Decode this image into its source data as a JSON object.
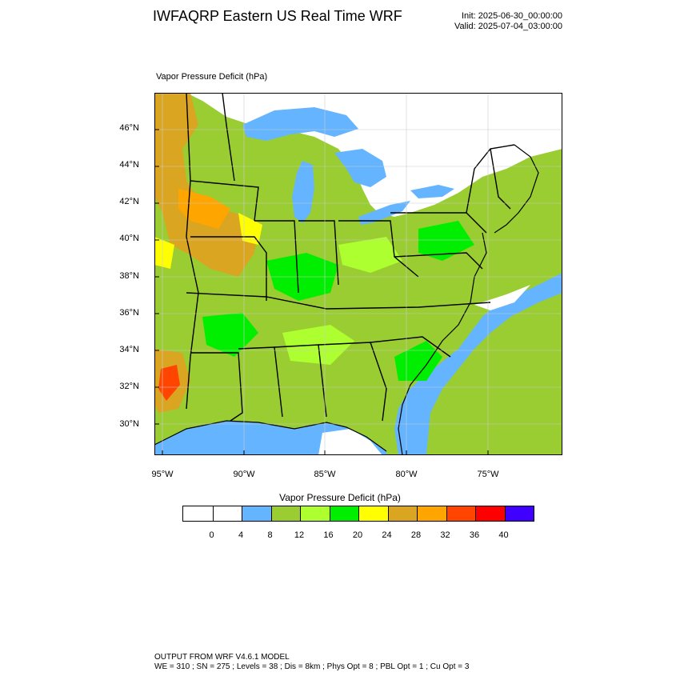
{
  "title": "IWFAQRP Eastern US Real Time WRF",
  "init": "Init: 2025-06-30_00:00:00",
  "valid": "Valid: 2025-07-04_03:00:00",
  "map_label": "Vapor Pressure Deficit   (hPa)",
  "lat_labels": [
    "46°N",
    "44°N",
    "42°N",
    "40°N",
    "38°N",
    "36°N",
    "34°N",
    "32°N",
    "30°N"
  ],
  "lon_labels": [
    "95°W",
    "90°W",
    "85°W",
    "80°W",
    "75°W"
  ],
  "colorbar": {
    "title": "Vapor Pressure Deficit   (hPa)",
    "labels": [
      "0",
      "4",
      "8",
      "12",
      "16",
      "20",
      "24",
      "28",
      "32",
      "36",
      "40"
    ],
    "colors": [
      "#ffffff",
      "#ffffff",
      "#64b4ff",
      "#9acd32",
      "#adff2f",
      "#00ee00",
      "#ffff00",
      "#daa520",
      "#ffa500",
      "#ff4500",
      "#ff0000",
      "#4000ff"
    ]
  },
  "footer": {
    "line1": "OUTPUT FROM WRF V4.6.1 MODEL",
    "line2": "WE = 310 ; SN = 275 ; Levels = 38 ; Dis = 8km ; Phys Opt = 8 ; PBL Opt = 1 ; Cu Opt = 3"
  }
}
